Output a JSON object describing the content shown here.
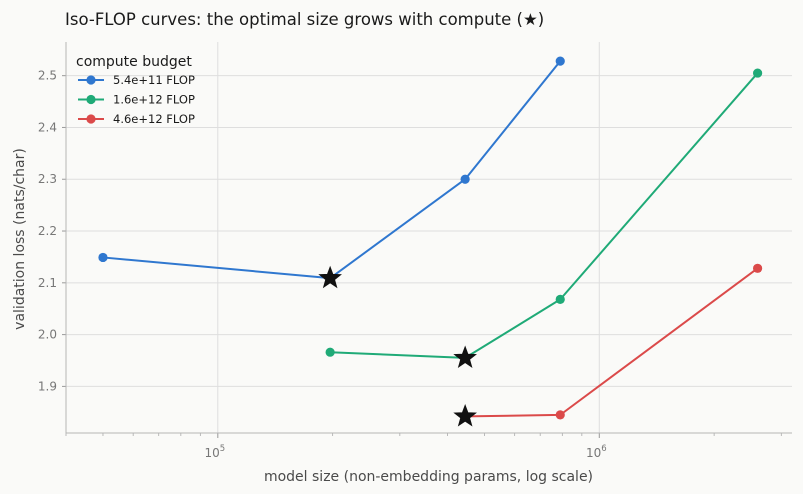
{
  "chart_data": {
    "type": "line",
    "title": "Iso-FLOP curves: the optimal size grows with compute (★)",
    "xlabel": "model size  (non-embedding params, log scale)",
    "ylabel": "validation loss (nats/char)",
    "x_scale": "log",
    "xlim": [
      40000,
      3200000
    ],
    "ylim": [
      1.81,
      2.565
    ],
    "x_major_ticks": [
      100000,
      1000000
    ],
    "x_tick_labels": [
      "10^5",
      "10^6"
    ],
    "y_ticks": [
      1.9,
      2.0,
      2.1,
      2.2,
      2.3,
      2.4,
      2.5
    ],
    "grid": true,
    "legend": {
      "title": "compute budget",
      "placement": "top-left"
    },
    "series": [
      {
        "name": "5.4e+11 FLOP",
        "color": "#2f77cf",
        "x": [
          50000,
          197000,
          445000,
          790000
        ],
        "y": [
          2.149,
          2.109,
          2.3,
          2.528
        ],
        "optimum": {
          "x": 197000,
          "y": 2.109
        }
      },
      {
        "name": "1.6e+12 FLOP",
        "color": "#1faa77",
        "x": [
          197000,
          445000,
          790000,
          2600000
        ],
        "y": [
          1.966,
          1.955,
          2.068,
          2.505
        ],
        "optimum": {
          "x": 445000,
          "y": 1.955
        }
      },
      {
        "name": "4.6e+12 FLOP",
        "color": "#db4a4a",
        "x": [
          445000,
          790000,
          2600000
        ],
        "y": [
          1.842,
          1.845,
          2.128
        ],
        "optimum": {
          "x": 445000,
          "y": 1.842
        }
      }
    ]
  }
}
